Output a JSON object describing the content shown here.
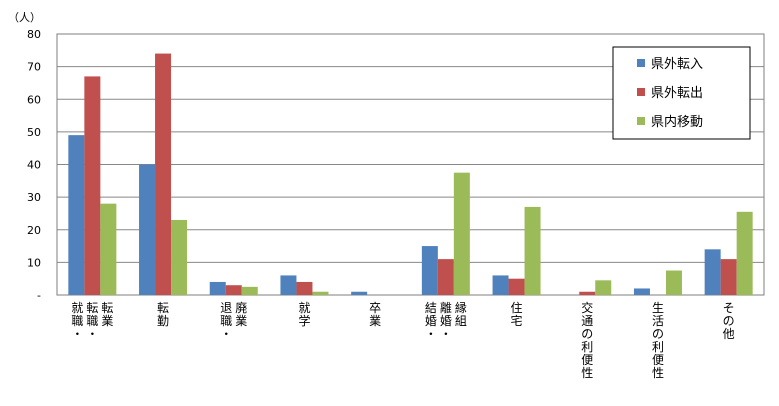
{
  "chart_data": {
    "type": "bar",
    "unit_label": "（人）",
    "ylim": [
      0,
      80
    ],
    "yticks": [
      "-",
      "10",
      "20",
      "30",
      "40",
      "50",
      "60",
      "70",
      "80"
    ],
    "grid": true,
    "legend_position": "top-right",
    "categories": [
      "就職・転職・転業",
      "転勤",
      "退職・廃業",
      "就学",
      "卒業",
      "結婚・離婚・縁組",
      "住宅",
      "交通の利便性",
      "生活の利便性",
      "その他"
    ],
    "series": [
      {
        "name": "県外転入",
        "color": "#4F81BD",
        "values": [
          49,
          40,
          4,
          6,
          1,
          15,
          6,
          0,
          2,
          14
        ]
      },
      {
        "name": "県外転出",
        "color": "#C0504D",
        "values": [
          67,
          74,
          3,
          4,
          0,
          11,
          5,
          1,
          0,
          11
        ]
      },
      {
        "name": "県内移動",
        "color": "#9BBB59",
        "values": [
          28,
          23,
          2.5,
          1,
          0,
          37.5,
          27,
          4.5,
          7.5,
          25.5
        ]
      }
    ]
  }
}
